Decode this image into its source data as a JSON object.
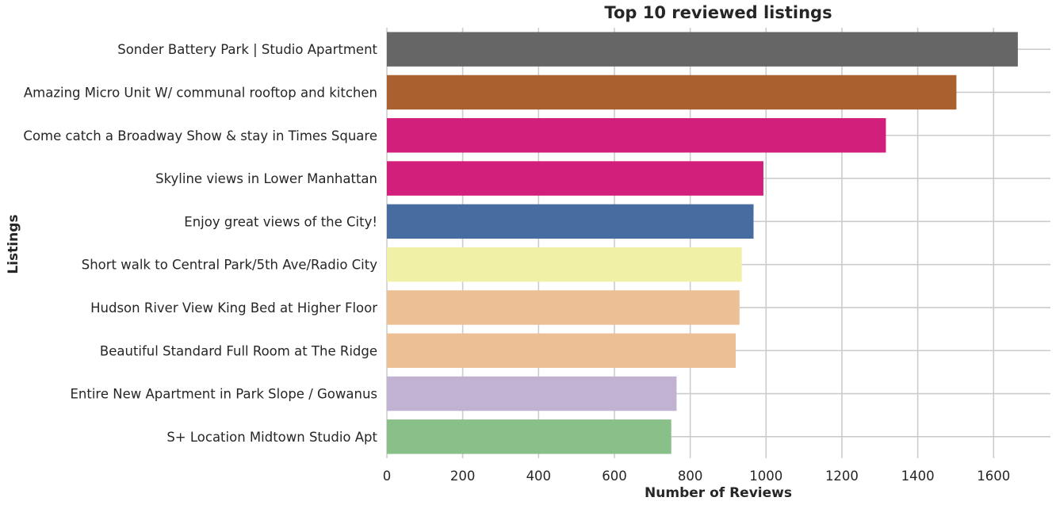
{
  "chart_data": {
    "type": "bar",
    "orientation": "horizontal",
    "title": "Top 10 reviewed listings",
    "xlabel": "Number of Reviews",
    "ylabel": "Listings",
    "xlim": [
      0,
      1750
    ],
    "xticks": [
      0,
      200,
      400,
      600,
      800,
      1000,
      1200,
      1400,
      1600
    ],
    "grid": true,
    "categories": [
      "Sonder Battery Park | Studio Apartment",
      "Amazing Micro Unit W/ communal rooftop and kitchen",
      "Come catch a Broadway Show & stay in Times Square",
      "Skyline views in Lower Manhattan",
      "Enjoy great views of the City!",
      "Short walk to Central Park/5th Ave/Radio City",
      "Hudson River View King Bed at Higher Floor",
      "Beautiful Standard Full Room at The Ridge",
      "Entire New Apartment in Park Slope / Gowanus",
      "S+ Location Midtown Studio Apt"
    ],
    "values": [
      1664,
      1502,
      1316,
      993,
      967,
      936,
      930,
      920,
      764,
      750
    ],
    "colors": [
      "#666666",
      "#a9612f",
      "#d31f7c",
      "#d31f7c",
      "#476da0",
      "#f0f0a6",
      "#ecc094",
      "#ecc094",
      "#c0b2d0",
      "#89bf88"
    ]
  }
}
